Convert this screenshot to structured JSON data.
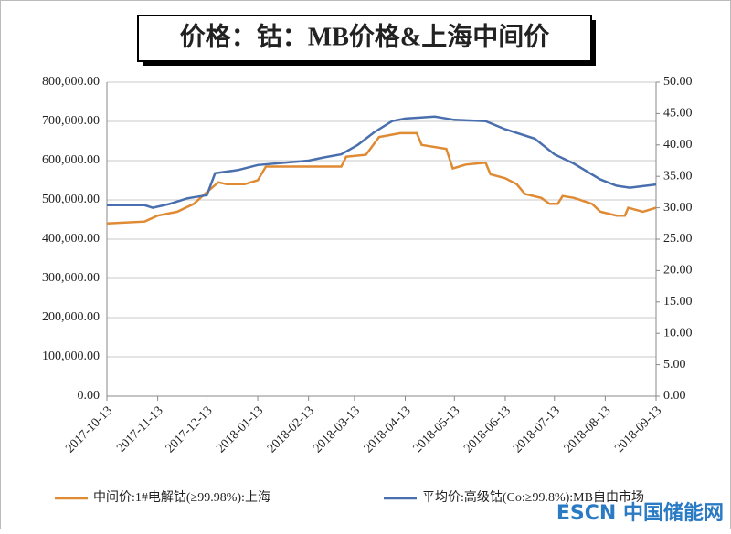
{
  "chart_data": {
    "type": "line",
    "title": "价格：钴：MB价格&上海中间价",
    "watermark": "ESCN 中国储能网",
    "grid": true,
    "legend": "bottom",
    "xlim": [
      "2017-10-13",
      "2018-09-13"
    ],
    "xticks": [
      "2017-10-13",
      "2017-11-13",
      "2017-12-13",
      "2018-01-13",
      "2018-02-13",
      "2018-03-13",
      "2018-04-13",
      "2018-05-13",
      "2018-06-13",
      "2018-07-13",
      "2018-08-13",
      "2018-09-13"
    ],
    "ylim": [
      0,
      800000
    ],
    "yticks": [
      {
        "value": 0,
        "label": "0.00"
      },
      {
        "value": 100000,
        "label": "100,000.00"
      },
      {
        "value": 200000,
        "label": "200,000.00"
      },
      {
        "value": 300000,
        "label": "300,000.00"
      },
      {
        "value": 400000,
        "label": "400,000.00"
      },
      {
        "value": 500000,
        "label": "500,000.00"
      },
      {
        "value": 600000,
        "label": "600,000.00"
      },
      {
        "value": 700000,
        "label": "700,000.00"
      },
      {
        "value": 800000,
        "label": "800,000.00"
      }
    ],
    "y2lim": [
      0,
      50
    ],
    "y2ticks": [
      {
        "value": 0,
        "label": "0.00"
      },
      {
        "value": 5,
        "label": "5.00"
      },
      {
        "value": 10,
        "label": "10.00"
      },
      {
        "value": 15,
        "label": "15.00"
      },
      {
        "value": 20,
        "label": "20.00"
      },
      {
        "value": 25,
        "label": "25.00"
      },
      {
        "value": 30,
        "label": "30.00"
      },
      {
        "value": 35,
        "label": "35.00"
      },
      {
        "value": 40,
        "label": "40.00"
      },
      {
        "value": 45,
        "label": "45.00"
      },
      {
        "value": 50,
        "label": "50.00"
      }
    ],
    "series": [
      {
        "name": "中间价:1#电解钴(≥99.98%):上海",
        "color": "#e08a34",
        "x": [
          "2017-10-13",
          "2017-11-05",
          "2017-11-13",
          "2017-11-25",
          "2017-12-05",
          "2017-12-13",
          "2017-12-20",
          "2017-12-25",
          "2018-01-05",
          "2018-01-13",
          "2018-01-18",
          "2018-02-13",
          "2018-03-05",
          "2018-03-08",
          "2018-03-20",
          "2018-03-28",
          "2018-04-10",
          "2018-04-20",
          "2018-04-23",
          "2018-05-08",
          "2018-05-12",
          "2018-05-20",
          "2018-06-01",
          "2018-06-04",
          "2018-06-13",
          "2018-06-20",
          "2018-06-25",
          "2018-07-05",
          "2018-07-10",
          "2018-07-15",
          "2018-07-18",
          "2018-07-25",
          "2018-08-05",
          "2018-08-10",
          "2018-08-20",
          "2018-08-25",
          "2018-08-27",
          "2018-09-05",
          "2018-09-13"
        ],
        "values": [
          440000,
          445000,
          460000,
          470000,
          490000,
          520000,
          545000,
          540000,
          540000,
          550000,
          585000,
          585000,
          585000,
          610000,
          615000,
          660000,
          670000,
          670000,
          640000,
          630000,
          580000,
          590000,
          595000,
          565000,
          555000,
          540000,
          515000,
          505000,
          490000,
          490000,
          510000,
          505000,
          490000,
          470000,
          460000,
          460000,
          480000,
          470000,
          480000
        ]
      },
      {
        "name": "平均价:高级钴(Co:≥99.8%):MB自由市场",
        "color": "#4a6fae",
        "axis": "y2",
        "x": [
          "2017-10-13",
          "2017-11-05",
          "2017-11-10",
          "2017-11-20",
          "2017-12-01",
          "2017-12-13",
          "2017-12-18",
          "2018-01-01",
          "2018-01-13",
          "2018-02-13",
          "2018-02-22",
          "2018-03-05",
          "2018-03-15",
          "2018-03-25",
          "2018-04-05",
          "2018-04-13",
          "2018-05-01",
          "2018-05-13",
          "2018-06-01",
          "2018-06-13",
          "2018-07-01",
          "2018-07-13",
          "2018-07-25",
          "2018-08-10",
          "2018-08-20",
          "2018-08-28",
          "2018-09-13"
        ],
        "values": [
          30.4,
          30.4,
          30.0,
          30.6,
          31.5,
          32.0,
          35.5,
          36.0,
          36.8,
          37.5,
          38.0,
          38.5,
          40.0,
          42.0,
          43.8,
          44.2,
          44.5,
          44.0,
          43.8,
          42.5,
          41.0,
          38.5,
          37.0,
          34.5,
          33.5,
          33.2,
          33.7
        ]
      }
    ]
  }
}
